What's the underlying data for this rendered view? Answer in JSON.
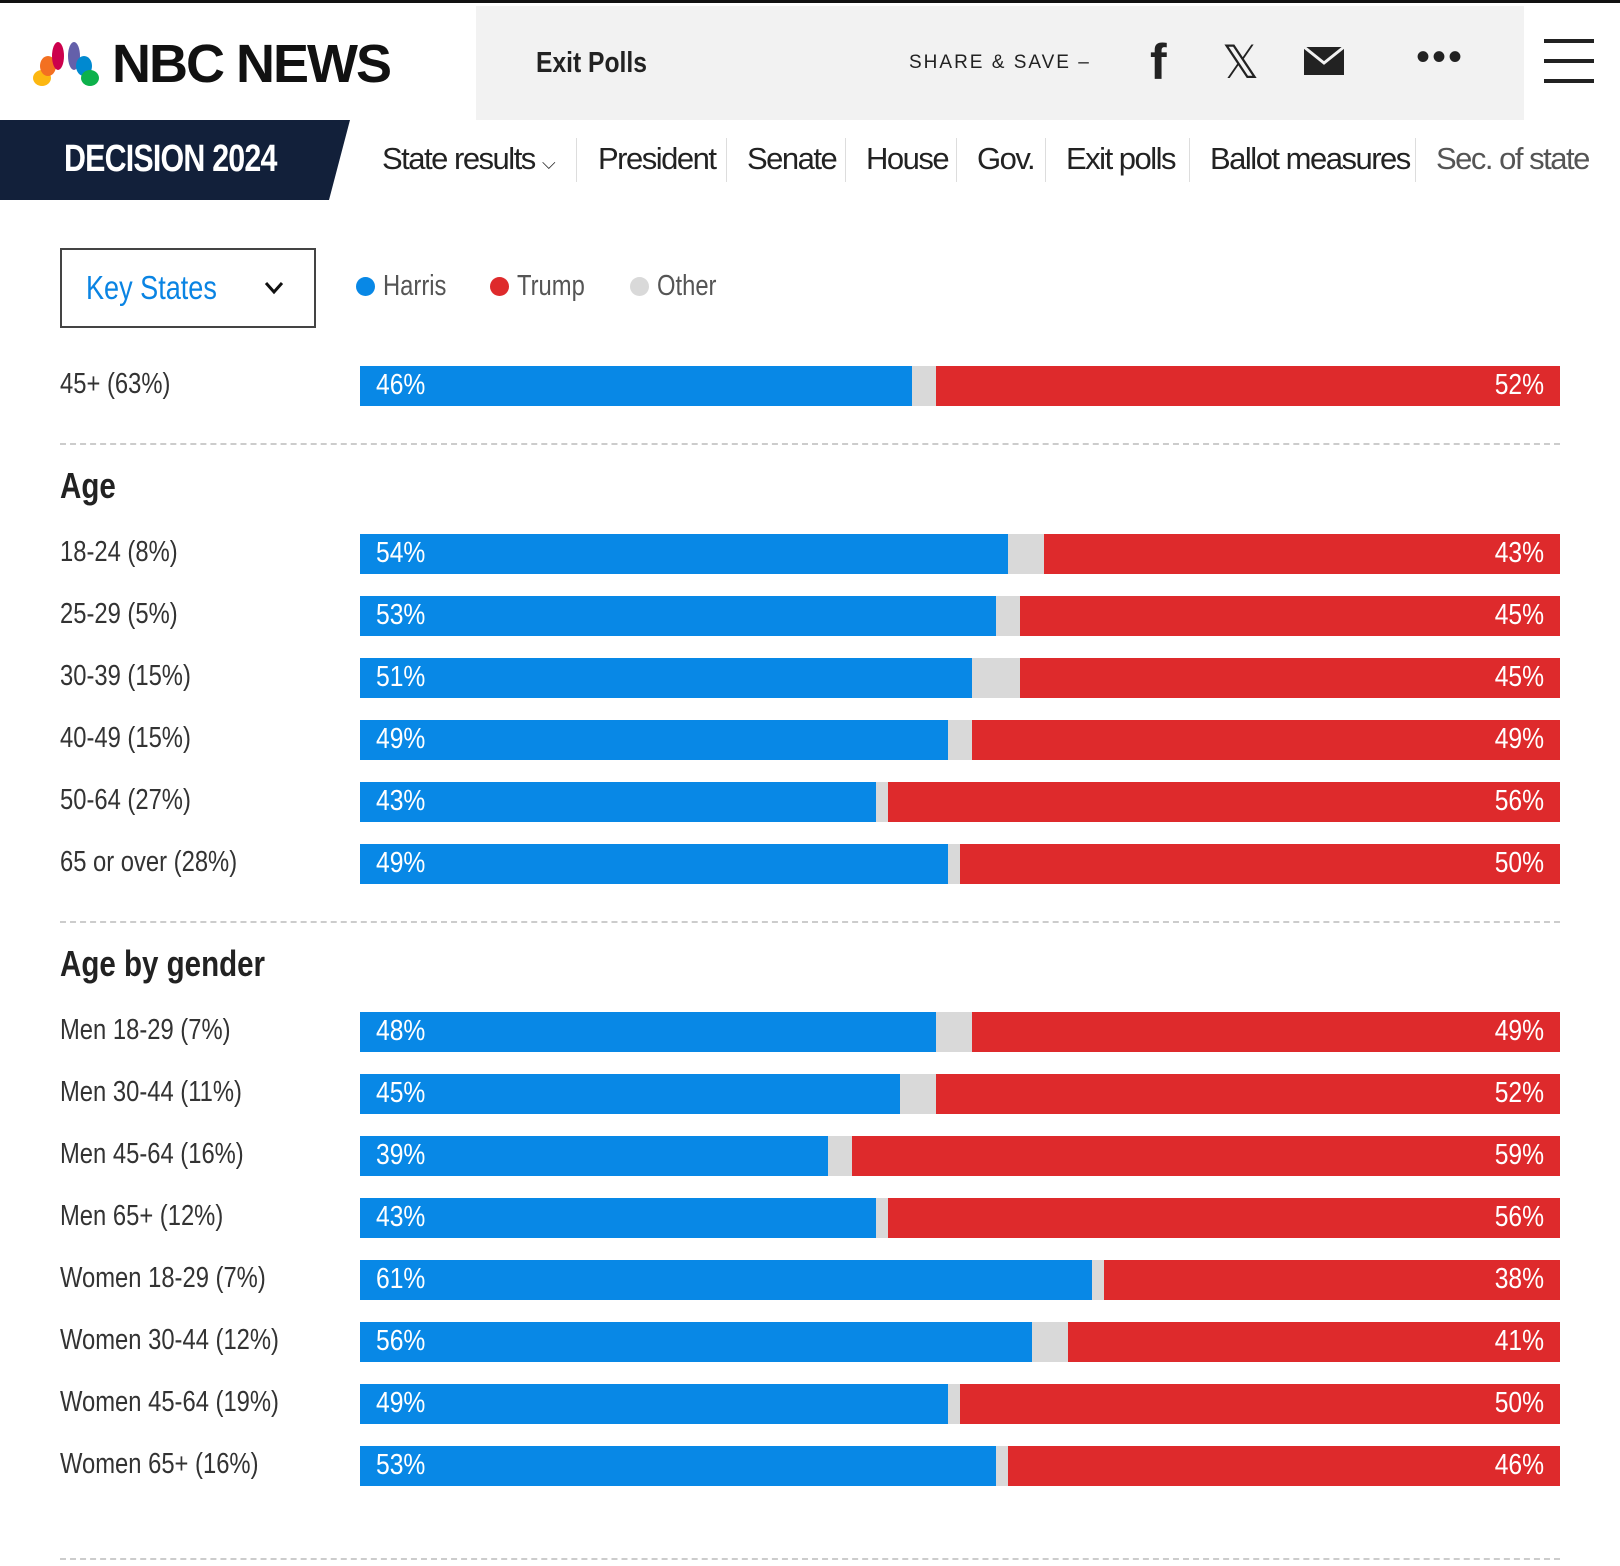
{
  "header": {
    "brand": "NBC NEWS",
    "title": "Exit Polls",
    "share_label": "SHARE & SAVE –"
  },
  "nav": {
    "brand": "DECISION 2024",
    "items": [
      "State results",
      "President",
      "Senate",
      "House",
      "Gov.",
      "Exit polls",
      "Ballot measures",
      "Sec. of state"
    ]
  },
  "filter": {
    "selected": "Key States"
  },
  "legend": [
    {
      "label": "Harris",
      "color": "#0888e6"
    },
    {
      "label": "Trump",
      "color": "#de2a2c"
    },
    {
      "label": "Other",
      "color": "#d9d9d9"
    }
  ],
  "chart_data": {
    "type": "bar",
    "stacked": true,
    "series_names": [
      "Harris",
      "Trump",
      "Other"
    ],
    "groups": [
      {
        "title": "",
        "rows": [
          {
            "label": "45+ (63%)",
            "harris": 46,
            "trump": 52
          }
        ]
      },
      {
        "title": "Age",
        "rows": [
          {
            "label": "18-24 (8%)",
            "harris": 54,
            "trump": 43
          },
          {
            "label": "25-29 (5%)",
            "harris": 53,
            "trump": 45
          },
          {
            "label": "30-39 (15%)",
            "harris": 51,
            "trump": 45
          },
          {
            "label": "40-49 (15%)",
            "harris": 49,
            "trump": 49
          },
          {
            "label": "50-64 (27%)",
            "harris": 43,
            "trump": 56
          },
          {
            "label": "65 or over (28%)",
            "harris": 49,
            "trump": 50
          }
        ]
      },
      {
        "title": "Age by gender",
        "rows": [
          {
            "label": "Men 18-29 (7%)",
            "harris": 48,
            "trump": 49
          },
          {
            "label": "Men 30-44 (11%)",
            "harris": 45,
            "trump": 52
          },
          {
            "label": "Men 45-64 (16%)",
            "harris": 39,
            "trump": 59
          },
          {
            "label": "Men 65+ (12%)",
            "harris": 43,
            "trump": 56
          },
          {
            "label": "Women 18-29 (7%)",
            "harris": 61,
            "trump": 38
          },
          {
            "label": "Women 30-44 (12%)",
            "harris": 56,
            "trump": 41
          },
          {
            "label": "Women 45-64 (19%)",
            "harris": 49,
            "trump": 50
          },
          {
            "label": "Women 65+ (16%)",
            "harris": 53,
            "trump": 46
          }
        ]
      }
    ]
  }
}
